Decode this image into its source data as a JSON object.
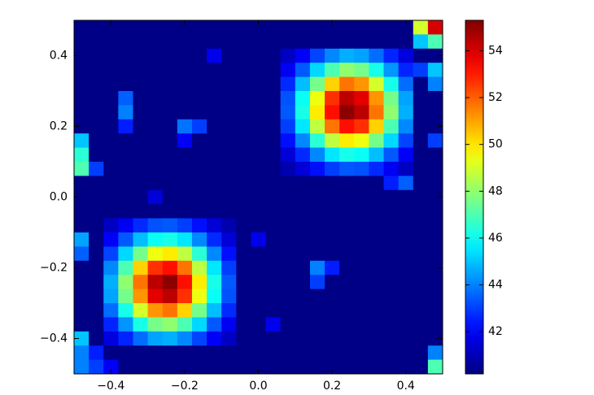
{
  "chart_data": {
    "type": "heatmap",
    "colormap": "jet",
    "xlim": [
      -0.5,
      0.5
    ],
    "ylim": [
      -0.5,
      0.5
    ],
    "xticks": [
      {
        "value": -0.4,
        "label": "−0.4"
      },
      {
        "value": -0.2,
        "label": "−0.2"
      },
      {
        "value": 0,
        "label": "0.0"
      },
      0.2,
      0.4
    ],
    "yticks": [
      {
        "value": -0.4,
        "label": "−0.4"
      },
      {
        "value": -0.2,
        "label": "−0.2"
      },
      {
        "value": 0,
        "label": "0.0"
      },
      0.2,
      0.4
    ],
    "clim": [
      40.2,
      55.3
    ],
    "cticks": [
      42,
      44,
      46,
      48,
      50,
      52,
      54
    ],
    "values": [
      [
        40.3,
        40.3,
        40.3,
        40.3,
        40.3,
        40.3,
        40.3,
        40.3,
        40.3,
        40.3,
        40.3,
        40.3,
        40.3,
        40.3,
        40.3,
        40.3,
        40.3,
        40.3,
        40.3,
        40.3,
        40.3,
        40.3,
        40.3,
        49,
        54
      ],
      [
        40.3,
        40.3,
        40.3,
        40.3,
        40.3,
        40.3,
        40.3,
        40.3,
        40.3,
        40.3,
        40.3,
        40.3,
        40.3,
        40.3,
        40.3,
        40.3,
        40.3,
        40.3,
        40.3,
        40.3,
        40.3,
        40.3,
        40.3,
        45,
        47
      ],
      [
        40.3,
        40.3,
        40.3,
        40.3,
        40.3,
        40.3,
        40.3,
        40.3,
        40.3,
        41.8,
        40.3,
        40.3,
        40.3,
        40.3,
        41.2,
        42.0,
        43.1,
        44.1,
        44.7,
        44.5,
        43.7,
        42.6,
        41.6,
        40.3,
        40.3
      ],
      [
        40.3,
        40.3,
        40.3,
        40.3,
        40.3,
        40.3,
        40.3,
        40.3,
        40.3,
        40.3,
        40.3,
        40.3,
        40.3,
        40.3,
        41.9,
        43.4,
        45.3,
        47.0,
        48.0,
        47.6,
        46.2,
        44.3,
        42.6,
        43,
        45
      ],
      [
        40.3,
        40.3,
        40.3,
        40.3,
        40.3,
        40.3,
        40.3,
        40.3,
        40.3,
        40.3,
        40.3,
        40.3,
        40.3,
        40.3,
        42.7,
        44.9,
        47.6,
        50.3,
        51.7,
        51.2,
        49.0,
        46.2,
        43.7,
        40.3,
        44
      ],
      [
        40.3,
        40.3,
        40.3,
        43.5,
        40.3,
        40.3,
        40.3,
        40.3,
        40.3,
        40.3,
        40.3,
        40.3,
        40.3,
        40.3,
        43.3,
        46.0,
        49.4,
        52.7,
        54.4,
        53.8,
        51.2,
        47.6,
        44.5,
        40.3,
        40.3
      ],
      [
        40.3,
        40.3,
        40.3,
        44.0,
        40.3,
        40.3,
        40.3,
        40.3,
        40.3,
        40.3,
        40.3,
        40.3,
        40.3,
        40.3,
        43.4,
        46.2,
        49.9,
        53.2,
        55.1,
        54.4,
        51.7,
        48.0,
        44.7,
        40.3,
        40.3
      ],
      [
        40.3,
        40.3,
        40.3,
        42.5,
        40.3,
        40.3,
        40.3,
        43.8,
        43.0,
        40.3,
        40.3,
        40.3,
        40.3,
        40.3,
        43.0,
        45.5,
        48.7,
        51.7,
        53.2,
        52.7,
        50.3,
        47.0,
        44.1,
        40.3,
        40.3
      ],
      [
        45.0,
        40.3,
        40.3,
        40.3,
        40.3,
        40.3,
        40.3,
        42.0,
        40.3,
        40.3,
        40.3,
        40.3,
        40.3,
        40.3,
        42.3,
        44.1,
        46.5,
        48.7,
        49.9,
        49.4,
        47.6,
        45.3,
        43.1,
        40.3,
        43
      ],
      [
        46.5,
        40.3,
        40.3,
        40.3,
        40.3,
        40.3,
        40.3,
        40.3,
        40.3,
        40.3,
        40.3,
        40.3,
        40.3,
        40.3,
        41.5,
        42.7,
        44.1,
        45.5,
        46.2,
        46.0,
        44.9,
        43.4,
        42.0,
        40.3,
        40.3
      ],
      [
        47.0,
        43,
        40.3,
        40.3,
        40.3,
        40.3,
        40.3,
        40.3,
        40.3,
        40.3,
        40.3,
        40.3,
        40.3,
        40.3,
        40.9,
        41.5,
        42.3,
        43.0,
        43.4,
        43.3,
        42.7,
        41.9,
        41.2,
        40.3,
        40.3
      ],
      [
        40.3,
        40.3,
        40.3,
        40.3,
        40.3,
        40.3,
        40.3,
        40.3,
        40.3,
        40.3,
        40.3,
        40.3,
        40.3,
        40.3,
        40.3,
        40.3,
        40.3,
        40.3,
        40.3,
        40.3,
        40.3,
        42.5,
        43.5,
        40.3,
        40.3
      ],
      [
        40.3,
        40.3,
        40.3,
        40.3,
        40.3,
        41.5,
        40.3,
        40.3,
        40.3,
        40.3,
        40.3,
        40.3,
        40.3,
        40.3,
        40.3,
        40.3,
        40.3,
        40.3,
        40.3,
        40.3,
        40.3,
        40.3,
        40.3,
        40.3,
        40.3
      ],
      [
        40.3,
        40.3,
        40.3,
        40.3,
        40.3,
        40.3,
        40.3,
        40.3,
        40.3,
        40.3,
        40.3,
        40.3,
        40.3,
        40.3,
        40.3,
        40.3,
        40.3,
        40.3,
        40.3,
        40.3,
        40.3,
        40.3,
        40.3,
        40.3,
        40.3
      ],
      [
        40.3,
        40.3,
        41.2,
        41.9,
        42.7,
        43.3,
        43.4,
        43.0,
        42.3,
        41.5,
        40.9,
        40.3,
        40.3,
        40.3,
        40.3,
        40.3,
        40.3,
        40.3,
        40.3,
        40.3,
        40.3,
        40.3,
        40.3,
        40.3,
        40.3
      ],
      [
        44.5,
        40.3,
        42.0,
        43.4,
        44.9,
        46.0,
        46.2,
        45.5,
        44.1,
        42.7,
        41.5,
        40.3,
        41.8,
        40.3,
        40.3,
        40.3,
        40.3,
        40.3,
        40.3,
        40.3,
        40.3,
        40.3,
        40.3,
        40.3,
        40.3
      ],
      [
        43.5,
        40.3,
        43.1,
        45.3,
        47.6,
        49.4,
        49.9,
        48.7,
        46.5,
        44.1,
        42.3,
        40.3,
        40.3,
        40.3,
        40.3,
        40.3,
        40.3,
        40.3,
        40.3,
        40.3,
        40.3,
        40.3,
        40.3,
        40.3,
        40.3
      ],
      [
        40.3,
        40.3,
        44.1,
        47.0,
        50.3,
        52.7,
        53.2,
        51.7,
        48.7,
        45.5,
        43.0,
        40.3,
        40.3,
        40.3,
        40.3,
        40.3,
        44.0,
        42.5,
        40.3,
        40.3,
        40.3,
        40.3,
        40.3,
        40.3,
        40.3
      ],
      [
        40.3,
        40.3,
        44.7,
        48.0,
        51.7,
        54.4,
        55.1,
        53.2,
        49.9,
        46.2,
        43.4,
        40.3,
        40.3,
        40.3,
        40.3,
        40.3,
        43.0,
        40.3,
        40.3,
        40.3,
        40.3,
        40.3,
        40.3,
        40.3,
        40.3
      ],
      [
        40.3,
        40.3,
        44.5,
        47.6,
        51.2,
        53.8,
        54.4,
        52.7,
        49.4,
        46.0,
        43.3,
        40.3,
        40.3,
        40.3,
        40.3,
        40.3,
        40.3,
        40.3,
        40.3,
        40.3,
        40.3,
        40.3,
        40.3,
        40.3,
        40.3
      ],
      [
        40.3,
        40.3,
        43.7,
        46.2,
        49.0,
        51.2,
        51.7,
        50.3,
        47.6,
        44.9,
        42.7,
        40.3,
        40.3,
        40.3,
        40.3,
        40.3,
        40.3,
        40.3,
        40.3,
        40.3,
        40.3,
        40.3,
        40.3,
        40.3,
        40.3
      ],
      [
        40.3,
        40.3,
        42.6,
        44.3,
        46.2,
        47.6,
        48.0,
        47.0,
        45.3,
        43.4,
        41.9,
        40.3,
        40.3,
        41.8,
        40.3,
        40.3,
        40.3,
        40.3,
        40.3,
        40.3,
        40.3,
        40.3,
        40.3,
        40.3,
        40.3
      ],
      [
        45,
        40.3,
        41.6,
        42.6,
        43.7,
        44.5,
        44.7,
        44.1,
        43.1,
        42.0,
        41.2,
        40.3,
        40.3,
        40.3,
        40.3,
        40.3,
        40.3,
        40.3,
        40.3,
        40.3,
        40.3,
        40.3,
        40.3,
        40.3,
        40.3
      ],
      [
        44,
        42.5,
        40.3,
        40.3,
        40.3,
        40.3,
        40.3,
        40.3,
        40.3,
        40.3,
        40.3,
        40.3,
        40.3,
        40.3,
        40.3,
        40.3,
        40.3,
        40.3,
        40.3,
        40.3,
        40.3,
        40.3,
        40.3,
        40.3,
        44
      ],
      [
        44,
        43,
        42,
        40.3,
        40.3,
        40.3,
        40.3,
        40.3,
        40.3,
        40.3,
        40.3,
        40.3,
        40.3,
        40.3,
        40.3,
        40.3,
        40.3,
        40.3,
        40.3,
        40.3,
        40.3,
        40.3,
        40.3,
        40.3,
        47
      ]
    ]
  }
}
